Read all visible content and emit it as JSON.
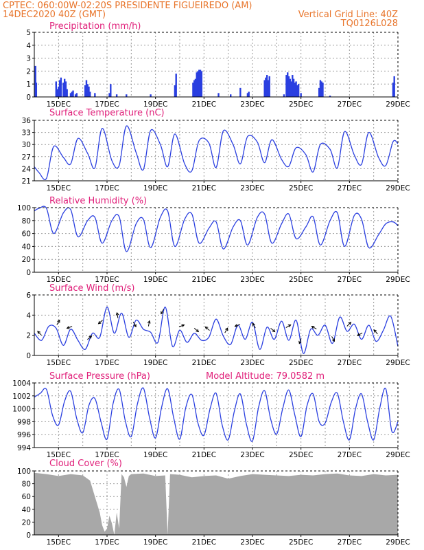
{
  "header": {
    "line1_left": "CPTEC:   060:00W-02:20S   PRESIDENTE FIGUEIREDO (AM)",
    "line2_left": "14DEC2020 40Z (GMT)",
    "line2_right": "Vertical Grid Line: 40Z",
    "line3_right": "TQ0126L028"
  },
  "x_axis": {
    "labels": [
      "15DEC",
      "17DEC",
      "19DEC",
      "21DEC",
      "23DEC",
      "25DEC",
      "27DEC",
      "29DEC"
    ],
    "label_days": [
      1,
      3,
      5,
      7,
      9,
      11,
      13,
      15
    ],
    "range_days": [
      0,
      15
    ]
  },
  "panels": {
    "precip": {
      "title": "Precipitation (mm/h)"
    },
    "temp": {
      "title": "Surface Temperature (nC)"
    },
    "rh": {
      "title": "Relative Humidity (%)"
    },
    "wind": {
      "title": "Surface Wind (m/s)"
    },
    "pressure": {
      "title": "Surface Pressure (hPa)",
      "extra": "Model Altitude: 79.0582 m"
    },
    "cloud": {
      "title": "Cloud Cover (%)"
    }
  },
  "colors": {
    "line": "#2a3fe0",
    "cloud": "#a8a8a8",
    "header": "#e8742a",
    "title": "#e0207a"
  },
  "chart_data": [
    {
      "type": "bar",
      "title": "Precipitation (mm/h)",
      "ylim": [
        0,
        5
      ],
      "yticks": [
        0,
        1,
        2,
        3,
        4,
        5
      ],
      "x_unit": "days since 14DEC2020 16Z",
      "x": [
        0.05,
        0.08,
        0.9,
        0.95,
        1.0,
        1.05,
        1.1,
        1.2,
        1.25,
        1.3,
        1.35,
        1.5,
        1.55,
        1.6,
        1.7,
        1.75,
        2.1,
        2.15,
        2.2,
        2.25,
        2.3,
        2.5,
        3.1,
        3.15,
        3.4,
        3.8,
        4.8,
        5.8,
        5.85,
        6.55,
        6.6,
        6.65,
        6.7,
        6.75,
        6.8,
        6.85,
        6.9,
        7.6,
        8.1,
        8.5,
        8.8,
        8.85,
        9.5,
        9.55,
        9.6,
        9.65,
        9.7,
        10.3,
        10.4,
        10.45,
        10.5,
        10.55,
        10.6,
        10.65,
        10.7,
        10.75,
        10.8,
        10.85,
        10.9,
        11.0,
        11.75,
        11.8,
        11.85,
        11.9,
        12.2,
        14.8,
        14.85
      ],
      "values": [
        2.4,
        1.1,
        1.2,
        0.6,
        0.8,
        1.3,
        1.5,
        1.1,
        1.4,
        1.2,
        0.6,
        0.3,
        0.4,
        0.5,
        0.2,
        0.3,
        0.9,
        1.3,
        1.0,
        0.8,
        0.4,
        0.3,
        0.3,
        1.0,
        0.2,
        0.2,
        0.2,
        0.9,
        1.8,
        1.1,
        1.3,
        1.4,
        1.9,
        2.0,
        2.1,
        2.1,
        2.0,
        0.3,
        0.2,
        0.7,
        0.3,
        0.4,
        1.3,
        1.5,
        1.7,
        1.3,
        1.6,
        0.2,
        1.7,
        1.9,
        1.6,
        1.4,
        1.2,
        1.7,
        1.4,
        1.1,
        1.2,
        0.9,
        1.0,
        0.3,
        0.7,
        1.3,
        1.2,
        1.1,
        0.1,
        1.1,
        1.6
      ]
    },
    {
      "type": "line",
      "title": "Surface Temperature (nC)",
      "ylim": [
        21,
        36
      ],
      "yticks": [
        21,
        24,
        27,
        30,
        33,
        36
      ],
      "x_unit": "days since 14DEC2020 16Z",
      "x": [
        0,
        0.2,
        0.5,
        0.8,
        1.2,
        1.5,
        1.8,
        2.2,
        2.5,
        2.8,
        3.2,
        3.5,
        3.8,
        4.2,
        4.5,
        4.8,
        5.2,
        5.5,
        5.8,
        6.2,
        6.5,
        6.8,
        7.2,
        7.5,
        7.8,
        8.2,
        8.5,
        8.8,
        9.2,
        9.5,
        9.8,
        10.2,
        10.5,
        10.8,
        11.2,
        11.5,
        11.8,
        12.2,
        12.5,
        12.8,
        13.2,
        13.5,
        13.8,
        14.2,
        14.5,
        14.8,
        15.0
      ],
      "values": [
        24.5,
        23.0,
        21.6,
        29.5,
        26.8,
        25.2,
        31.5,
        27.8,
        24.2,
        34.0,
        26.0,
        24.8,
        34.6,
        28.0,
        23.8,
        33.5,
        30.0,
        24.5,
        32.6,
        25.2,
        23.5,
        31.0,
        30.4,
        24.3,
        33.4,
        30.0,
        25.2,
        32.0,
        30.6,
        25.5,
        31.2,
        26.3,
        24.6,
        29.2,
        27.5,
        23.2,
        30.0,
        28.8,
        24.2,
        33.2,
        27.4,
        25.1,
        33.0,
        26.8,
        24.8,
        30.7,
        30.2
      ]
    },
    {
      "type": "line",
      "title": "Relative Humidity (%)",
      "ylim": [
        0,
        100
      ],
      "yticks": [
        0,
        20,
        40,
        60,
        80,
        100
      ],
      "x_unit": "days since 14DEC2020 16Z",
      "x": [
        0,
        0.2,
        0.5,
        0.8,
        1.2,
        1.5,
        1.8,
        2.2,
        2.5,
        2.8,
        3.2,
        3.5,
        3.8,
        4.2,
        4.5,
        4.8,
        5.2,
        5.5,
        5.8,
        6.2,
        6.5,
        6.8,
        7.2,
        7.5,
        7.8,
        8.2,
        8.5,
        8.8,
        9.2,
        9.5,
        9.8,
        10.2,
        10.5,
        10.8,
        11.2,
        11.5,
        11.8,
        12.2,
        12.5,
        12.8,
        13.2,
        13.5,
        13.8,
        14.2,
        14.5,
        14.8,
        15.0
      ],
      "values": [
        95,
        99,
        99,
        60,
        92,
        97,
        55,
        80,
        85,
        45,
        80,
        86,
        32,
        75,
        82,
        38,
        85,
        95,
        40,
        82,
        90,
        45,
        68,
        78,
        36,
        70,
        80,
        42,
        85,
        90,
        45,
        75,
        90,
        52,
        70,
        86,
        42,
        80,
        92,
        40,
        88,
        82,
        38,
        58,
        75,
        78,
        72
      ]
    },
    {
      "type": "line",
      "title": "Surface Wind (m/s)",
      "ylim": [
        0,
        6
      ],
      "yticks": [
        0,
        2,
        4,
        6
      ],
      "x_unit": "days since 14DEC2020 16Z",
      "x": [
        0,
        0.3,
        0.6,
        0.9,
        1.2,
        1.5,
        1.8,
        2.1,
        2.4,
        2.7,
        3.0,
        3.3,
        3.6,
        3.9,
        4.2,
        4.5,
        4.8,
        5.1,
        5.4,
        5.7,
        6.0,
        6.3,
        6.6,
        6.9,
        7.2,
        7.5,
        7.8,
        8.1,
        8.4,
        8.7,
        9.0,
        9.3,
        9.6,
        9.9,
        10.2,
        10.5,
        10.8,
        11.1,
        11.4,
        11.7,
        12.0,
        12.3,
        12.6,
        12.9,
        13.2,
        13.5,
        13.8,
        14.1,
        14.4,
        14.7,
        15.0
      ],
      "values": [
        2.2,
        1.5,
        2.9,
        2.7,
        1.0,
        2.6,
        1.5,
        0.6,
        2.2,
        1.8,
        4.8,
        2.2,
        4.2,
        1.8,
        3.5,
        2.6,
        2.3,
        1.3,
        4.8,
        0.9,
        2.5,
        1.3,
        2.2,
        1.5,
        1.8,
        3.6,
        1.9,
        1.1,
        3.0,
        1.6,
        3.3,
        0.6,
        2.8,
        1.6,
        3.4,
        1.5,
        3.5,
        0.2,
        2.6,
        2.0,
        3.0,
        1.2,
        3.8,
        2.4,
        3.1,
        1.6,
        3.0,
        1.4,
        2.5,
        3.9,
        0.9
      ]
    },
    {
      "type": "line",
      "title": "Surface Pressure (hPa)",
      "ylim": [
        994,
        1004
      ],
      "yticks": [
        994,
        996,
        998,
        1000,
        1002,
        1004
      ],
      "x_unit": "days since 14DEC2020 16Z",
      "x": [
        0,
        0.25,
        0.5,
        0.75,
        1.0,
        1.25,
        1.5,
        1.75,
        2.0,
        2.25,
        2.5,
        2.75,
        3.0,
        3.25,
        3.5,
        3.75,
        4.0,
        4.25,
        4.5,
        4.75,
        5.0,
        5.25,
        5.5,
        5.75,
        6.0,
        6.25,
        6.5,
        6.75,
        7.0,
        7.25,
        7.5,
        7.75,
        8.0,
        8.25,
        8.5,
        8.75,
        9.0,
        9.25,
        9.5,
        9.75,
        10.0,
        10.25,
        10.5,
        10.75,
        11.0,
        11.25,
        11.5,
        11.75,
        12.0,
        12.25,
        12.5,
        12.75,
        13.0,
        13.25,
        13.5,
        13.75,
        14.0,
        14.25,
        14.5,
        14.75,
        15.0
      ],
      "values": [
        1001.8,
        1002.4,
        1003.0,
        999.0,
        997.5,
        1001.2,
        1002.7,
        998.5,
        996.3,
        1000.5,
        1001.6,
        998.0,
        995.3,
        1000.8,
        1003.0,
        998.2,
        995.7,
        1000.7,
        1003.2,
        998.7,
        995.5,
        1000.2,
        1003.1,
        998.6,
        995.3,
        1000.2,
        1002.2,
        997.8,
        995.9,
        1000.0,
        1002.4,
        997.5,
        995.2,
        999.6,
        1002.3,
        997.6,
        995.0,
        1000.2,
        1002.8,
        998.4,
        996.1,
        1000.1,
        1002.9,
        999.0,
        995.7,
        1000.5,
        1002.3,
        998.0,
        997.8,
        1001.0,
        1002.4,
        998.0,
        995.2,
        1000.0,
        1002.3,
        998.0,
        995.2,
        1000.1,
        1003.1,
        996.5,
        998.0
      ]
    },
    {
      "type": "area",
      "title": "Cloud Cover (%)",
      "ylim": [
        0,
        100
      ],
      "yticks": [
        0,
        20,
        40,
        60,
        80,
        100
      ],
      "x_unit": "days since 14DEC2020 16Z",
      "x": [
        0,
        0.5,
        1.0,
        1.5,
        2.0,
        2.3,
        2.5,
        2.7,
        2.8,
        2.9,
        3.0,
        3.1,
        3.2,
        3.3,
        3.4,
        3.5,
        3.6,
        3.7,
        3.8,
        3.9,
        4.0,
        4.5,
        5.0,
        5.4,
        5.5,
        5.6,
        6.0,
        6.5,
        7.0,
        7.5,
        8.0,
        8.5,
        9.0,
        9.5,
        10.0,
        10.5,
        11.0,
        11.5,
        12.0,
        12.5,
        13.0,
        13.5,
        14.0,
        14.5,
        15.0
      ],
      "values": [
        97,
        95,
        92,
        95,
        93,
        85,
        60,
        35,
        15,
        5,
        10,
        30,
        18,
        0,
        35,
        10,
        95,
        90,
        75,
        92,
        95,
        96,
        92,
        93,
        0,
        95,
        94,
        90,
        92,
        93,
        88,
        92,
        95,
        94,
        93,
        92,
        94,
        93,
        95,
        96,
        93,
        92,
        95,
        93,
        94
      ]
    }
  ]
}
